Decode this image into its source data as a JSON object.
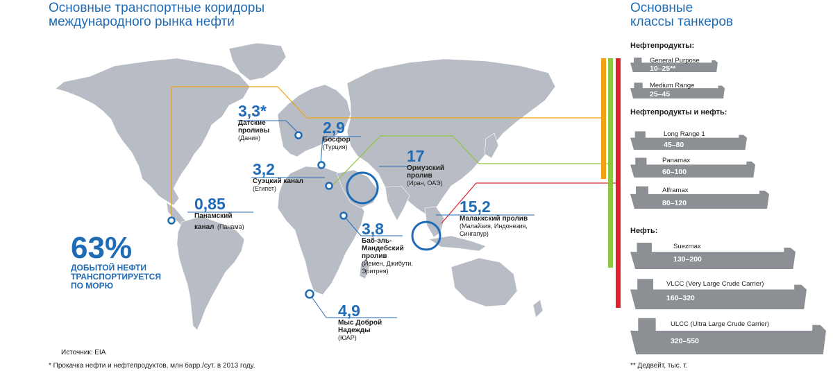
{
  "title_left": [
    "Основные транспортные коридоры",
    "международного рынка нефти"
  ],
  "title_right": [
    "Основные",
    "классы танкеров"
  ],
  "colors": {
    "accent_blue": "#1f6bb5",
    "land": "#b8bcc4",
    "orange": "#f2a113",
    "green": "#8dc63f",
    "red": "#e2202a",
    "ship": "#8c8f94"
  },
  "stat": {
    "value": "63%",
    "text": [
      "ДОБЫТОЙ НЕФТИ",
      "ТРАНСПОРТИРУЕТСЯ",
      "ПО МОРЮ"
    ]
  },
  "chokepoints": [
    {
      "value": "3,3*",
      "name": [
        "Датские",
        "проливы"
      ],
      "country": "(Дания)"
    },
    {
      "value": "2,9",
      "name": [
        "Босфор"
      ],
      "country": "(Турция)"
    },
    {
      "value": "17",
      "name": [
        "Ормузский",
        "пролив"
      ],
      "country": "(Иран, ОАЭ)"
    },
    {
      "value": "3,2",
      "name": [
        "Суэцкий канал"
      ],
      "country": "(Египет)"
    },
    {
      "value": "0,85",
      "name": [
        "Панамский"
      ],
      "name_tail": "канал",
      "country": "(Панама)"
    },
    {
      "value": "15,2",
      "name": [
        "Малаккский пролив"
      ],
      "country": [
        "(Малайзия, Индонезия,",
        "Сингапур)"
      ]
    },
    {
      "value": "3,8",
      "name": [
        "Баб-эль-",
        "Мандебский",
        "пролив"
      ],
      "country": [
        "(Йемен, Джибути,",
        "Эритрея)"
      ]
    },
    {
      "value": "4,9",
      "name": [
        "Мыс Доброй",
        "Надежды"
      ],
      "country": "(ЮАР)"
    }
  ],
  "tankers": {
    "section_products": "Нефтепродукты:",
    "section_products_oil": "Нефтепродукты и нефть:",
    "section_oil": "Нефть:",
    "ships": [
      {
        "name": "General Purpose",
        "range": "10–25**"
      },
      {
        "name": "Medium Range",
        "range": "25–45"
      },
      {
        "name": "Long Range 1",
        "range": "45–80"
      },
      {
        "name": "Panamax",
        "range": "60–100"
      },
      {
        "name": "Alframax",
        "range": "80–120"
      },
      {
        "name": "Suezmax",
        "range": "130–200"
      },
      {
        "name": "VLCC (Very Large Crude Carrier)",
        "range": "160–320"
      },
      {
        "name": "ULCC (Ultra Large Crude Carrier)",
        "range": "320–550"
      }
    ]
  },
  "source": "Источник: EIA",
  "footnote_left": "* Прокачка нефти и нефтепродуктов, млн барр./сут. в 2013 году.",
  "footnote_right": "** Дедвейт, тыс. т."
}
